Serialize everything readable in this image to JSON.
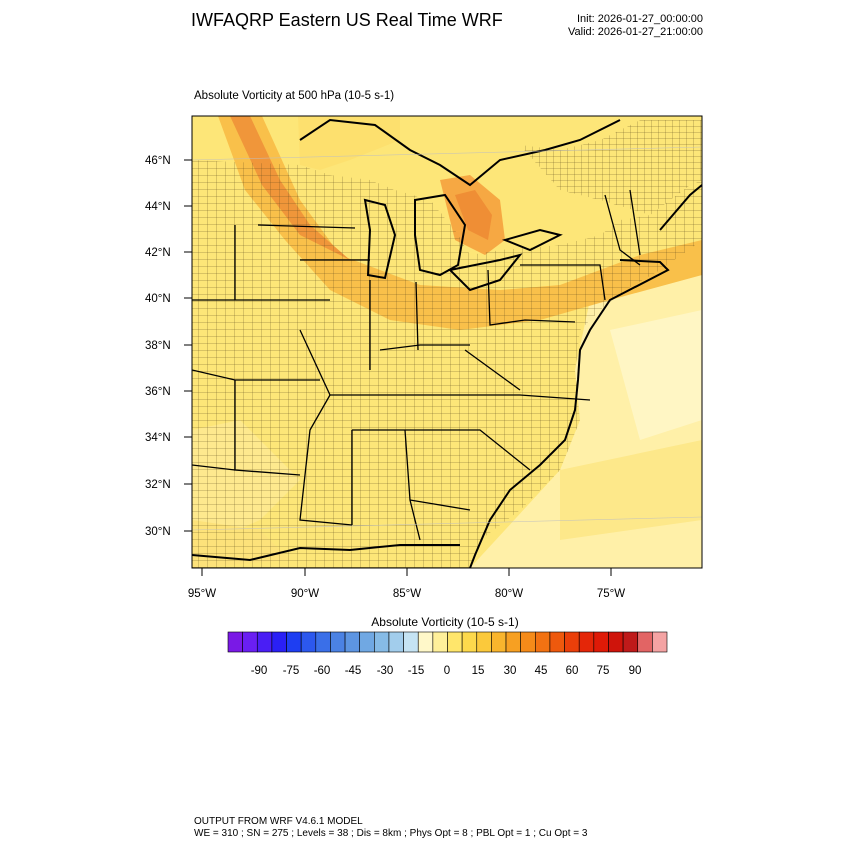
{
  "header": {
    "title": "IWFAQRP Eastern US Real Time WRF",
    "init": "Init: 2026-01-27_00:00:00",
    "valid": "Valid: 2026-01-27_21:00:00"
  },
  "plot": {
    "subtitle": "Absolute Vorticity at 500 hPa   (10-5 s-1)",
    "lat_labels": [
      "46°N",
      "44°N",
      "42°N",
      "40°N",
      "38°N",
      "36°N",
      "34°N",
      "32°N",
      "30°N"
    ],
    "lon_labels": [
      "95°W",
      "90°W",
      "85°W",
      "80°W",
      "75°W"
    ]
  },
  "colorbar": {
    "title": "Absolute Vorticity  (10-5 s-1)",
    "tick_labels": [
      "-90",
      "-75",
      "-60",
      "-45",
      "-30",
      "-15",
      "0",
      "15",
      "30",
      "45",
      "60",
      "75",
      "90"
    ],
    "colors": [
      "#7a19e6",
      "#6a1ff2",
      "#4a1ef5",
      "#2a20f5",
      "#1e3ef2",
      "#2c58ee",
      "#3a6fe8",
      "#4b82e4",
      "#5d95e2",
      "#70a8e3",
      "#86bbe6",
      "#a2cdec",
      "#c5e3f3",
      "#fff8c9",
      "#fff09a",
      "#ffe66b",
      "#fdd94c",
      "#fbc93b",
      "#f9b52d",
      "#f7a022",
      "#f58b19",
      "#f27212",
      "#ee590d",
      "#ea3f0a",
      "#e42608",
      "#df1a07",
      "#cf140b",
      "#bf1a1a",
      "#e26464",
      "#f4a3a3"
    ]
  },
  "footer": {
    "line1": "OUTPUT FROM WRF V4.6.1 MODEL",
    "line2": "WE = 310 ; SN = 275 ; Levels = 38 ; Dis = 8km ; Phys Opt = 8 ; PBL Opt = 1 ; Cu Opt = 3"
  }
}
